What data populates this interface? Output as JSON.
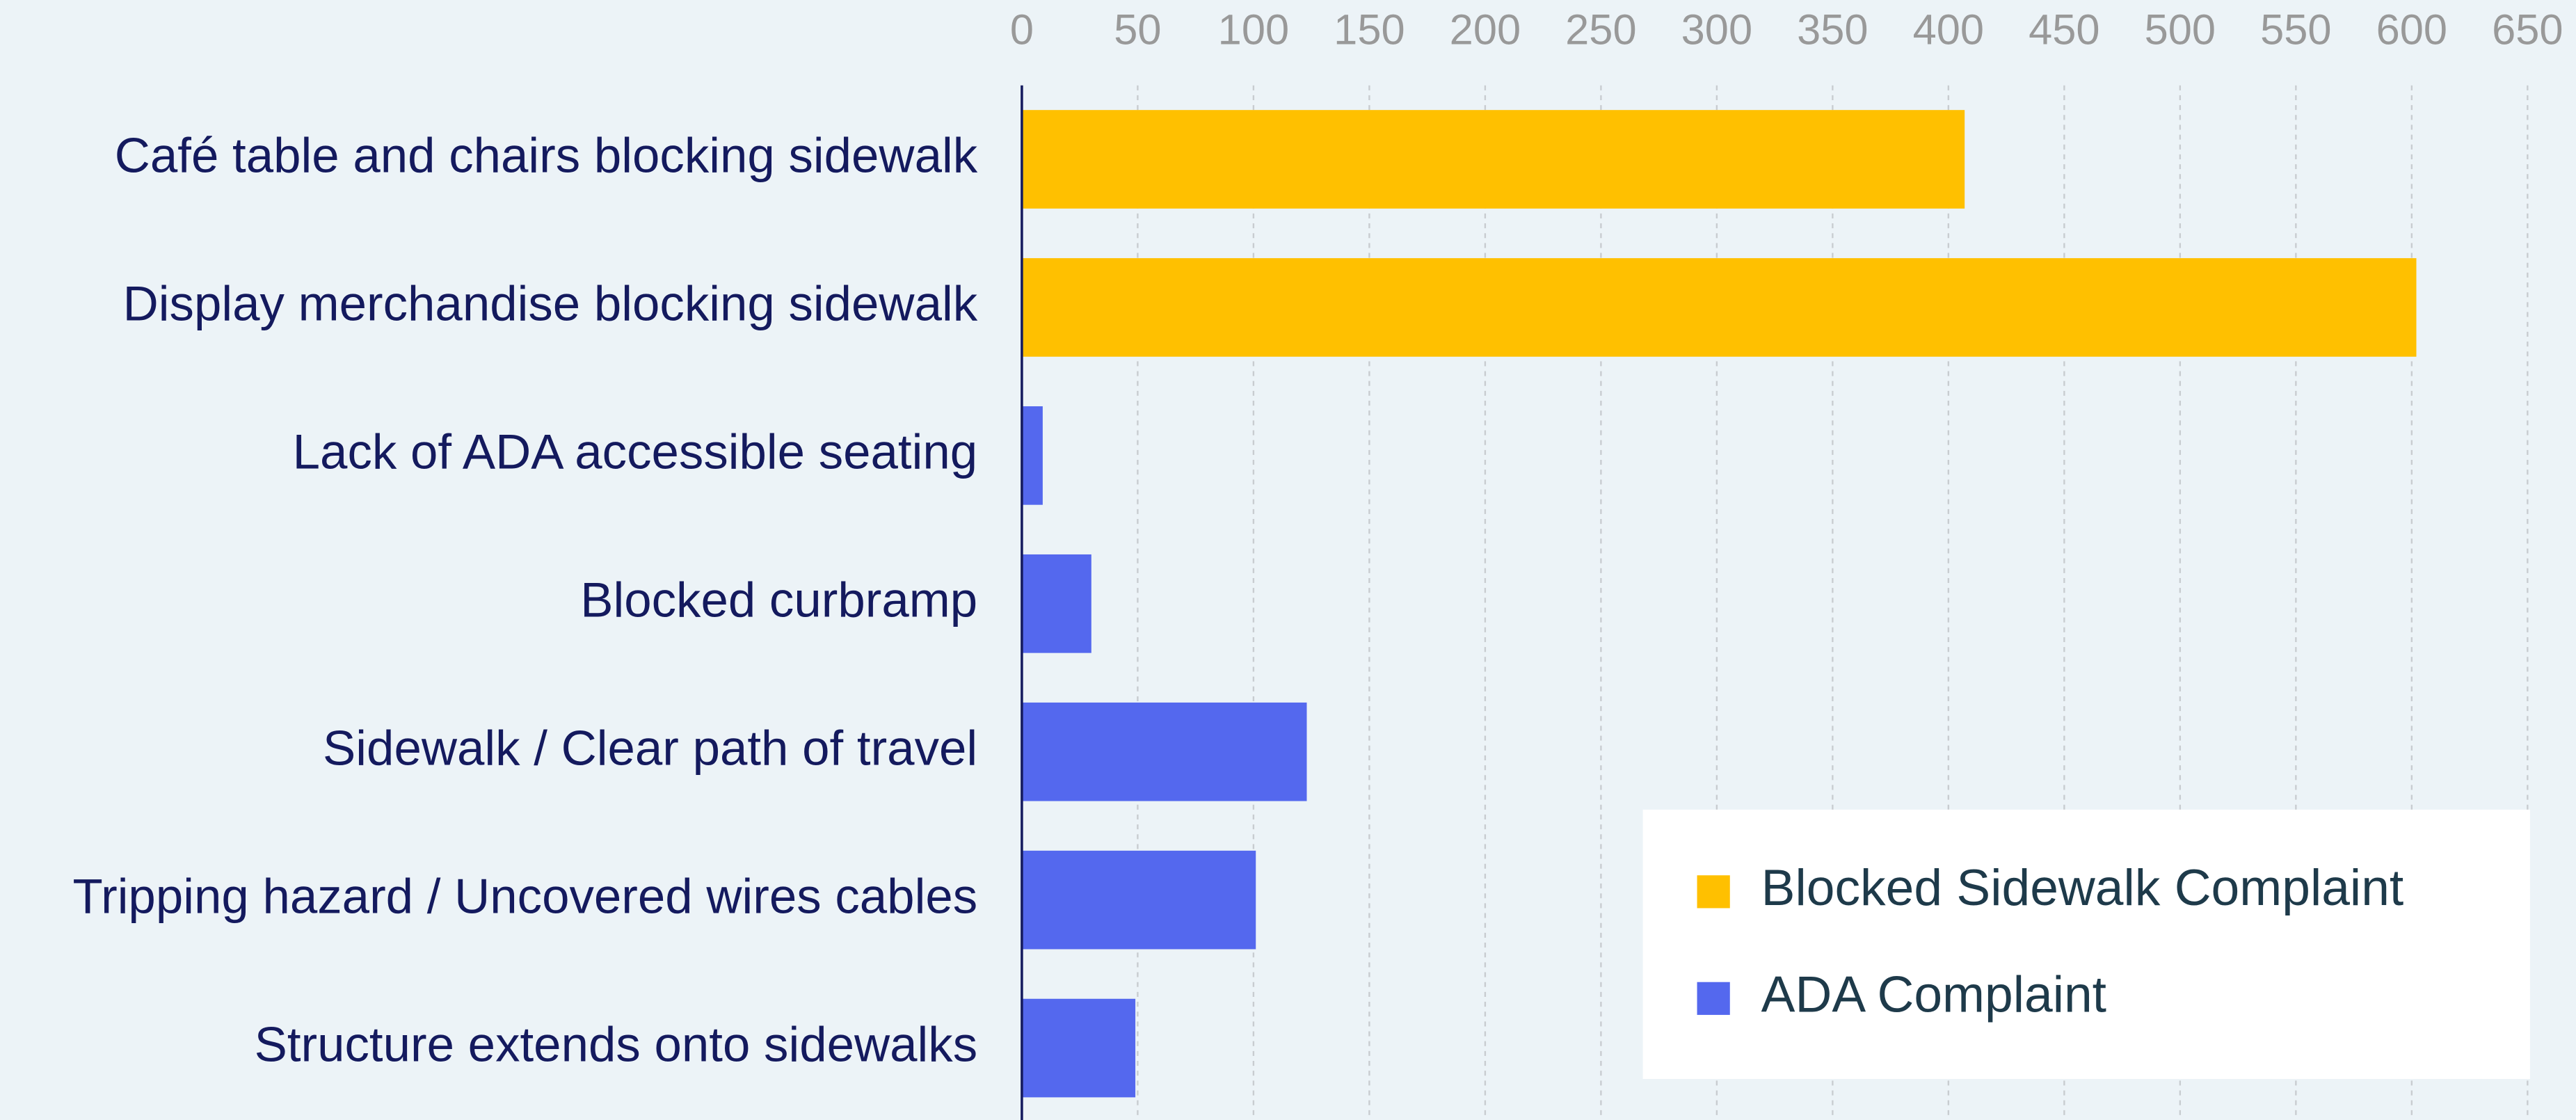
{
  "chart_data": {
    "type": "bar",
    "orientation": "horizontal",
    "categories": [
      "Café table and chairs blocking sidewalk",
      "Display merchandise blocking sidewalk",
      "Lack of ADA accessible seating",
      "Blocked curbramp",
      "Sidewalk / Clear path of travel",
      "Tripping hazard / Uncovered wires cables",
      "Structure extends onto sidewalks"
    ],
    "series": [
      {
        "name": "Blocked Sidewalk Complaint",
        "color": "#ffc000",
        "values": [
          407,
          602,
          null,
          null,
          null,
          null,
          null
        ]
      },
      {
        "name": "ADA Complaint",
        "color": "#5468ee",
        "values": [
          null,
          null,
          9,
          30,
          123,
          101,
          49
        ]
      }
    ],
    "xlim": [
      0,
      650
    ],
    "xticks": [
      0,
      50,
      100,
      150,
      200,
      250,
      300,
      350,
      400,
      450,
      500,
      550,
      600,
      650
    ],
    "grid": true,
    "legend": "lower right"
  }
}
